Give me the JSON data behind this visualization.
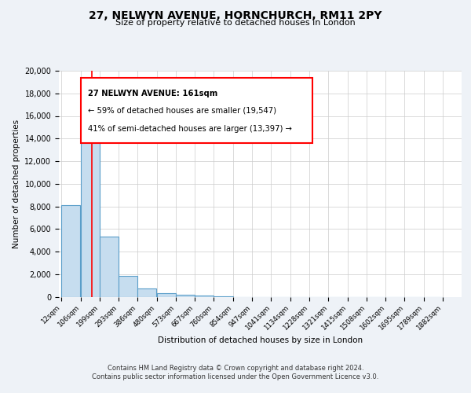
{
  "title": "27, NELWYN AVENUE, HORNCHURCH, RM11 2PY",
  "subtitle": "Size of property relative to detached houses in London",
  "xlabel": "Distribution of detached houses by size in London",
  "ylabel": "Number of detached properties",
  "footer_lines": [
    "Contains HM Land Registry data © Crown copyright and database right 2024.",
    "Contains public sector information licensed under the Open Government Licence v3.0."
  ],
  "bar_labels": [
    "12sqm",
    "106sqm",
    "199sqm",
    "293sqm",
    "386sqm",
    "480sqm",
    "573sqm",
    "667sqm",
    "760sqm",
    "854sqm",
    "947sqm",
    "1041sqm",
    "1134sqm",
    "1228sqm",
    "1321sqm",
    "1415sqm",
    "1508sqm",
    "1602sqm",
    "1695sqm",
    "1789sqm",
    "1882sqm"
  ],
  "bar_values": [
    8100,
    16600,
    5300,
    1850,
    750,
    300,
    175,
    110,
    60,
    0,
    0,
    0,
    0,
    0,
    0,
    0,
    0,
    0,
    0,
    0
  ],
  "bar_color": "#c6ddef",
  "bar_edge_color": "#5a9ec9",
  "ann_line1": "27 NELWYN AVENUE: 161sqm",
  "ann_line2": "← 59% of detached houses are smaller (19,547)",
  "ann_line3": "41% of semi-detached houses are larger (13,397) →",
  "red_line_x": 161,
  "ylim": [
    0,
    20000
  ],
  "bin_lefts": [
    12,
    106,
    199,
    293,
    386,
    480,
    573,
    667,
    760,
    854,
    947,
    1041,
    1134,
    1228,
    1321,
    1415,
    1508,
    1602,
    1695,
    1789
  ],
  "bin_width": 93,
  "xtick_vals": [
    12,
    106,
    199,
    293,
    386,
    480,
    573,
    667,
    760,
    854,
    947,
    1041,
    1134,
    1228,
    1321,
    1415,
    1508,
    1602,
    1695,
    1789,
    1882
  ],
  "background_color": "#eef2f7",
  "plot_background": "#ffffff",
  "grid_color": "#cccccc"
}
